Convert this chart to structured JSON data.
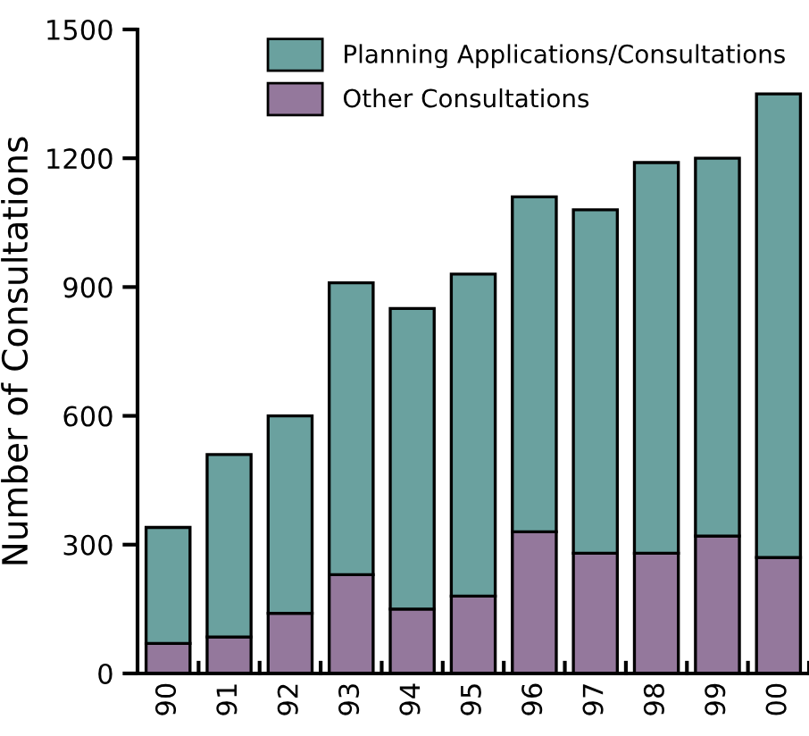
{
  "chart_data": {
    "type": "bar",
    "stacked": true,
    "ylabel": "Number of Consultations",
    "categories": [
      "90",
      "91",
      "92",
      "93",
      "94",
      "95",
      "96",
      "97",
      "98",
      "99",
      "00"
    ],
    "series": [
      {
        "name": "Other Consultations",
        "color": "#94789c",
        "values": [
          70,
          85,
          140,
          230,
          150,
          180,
          330,
          280,
          280,
          320,
          270
        ]
      },
      {
        "name": "Planning Applications/Consultations",
        "color": "#6aa19f",
        "values": [
          270,
          425,
          460,
          680,
          700,
          750,
          780,
          800,
          910,
          880,
          1080
        ]
      }
    ],
    "ylim": [
      0,
      1500
    ],
    "yticks": [
      0,
      300,
      600,
      900,
      1200,
      1500
    ],
    "grid": false,
    "legend": "top"
  }
}
